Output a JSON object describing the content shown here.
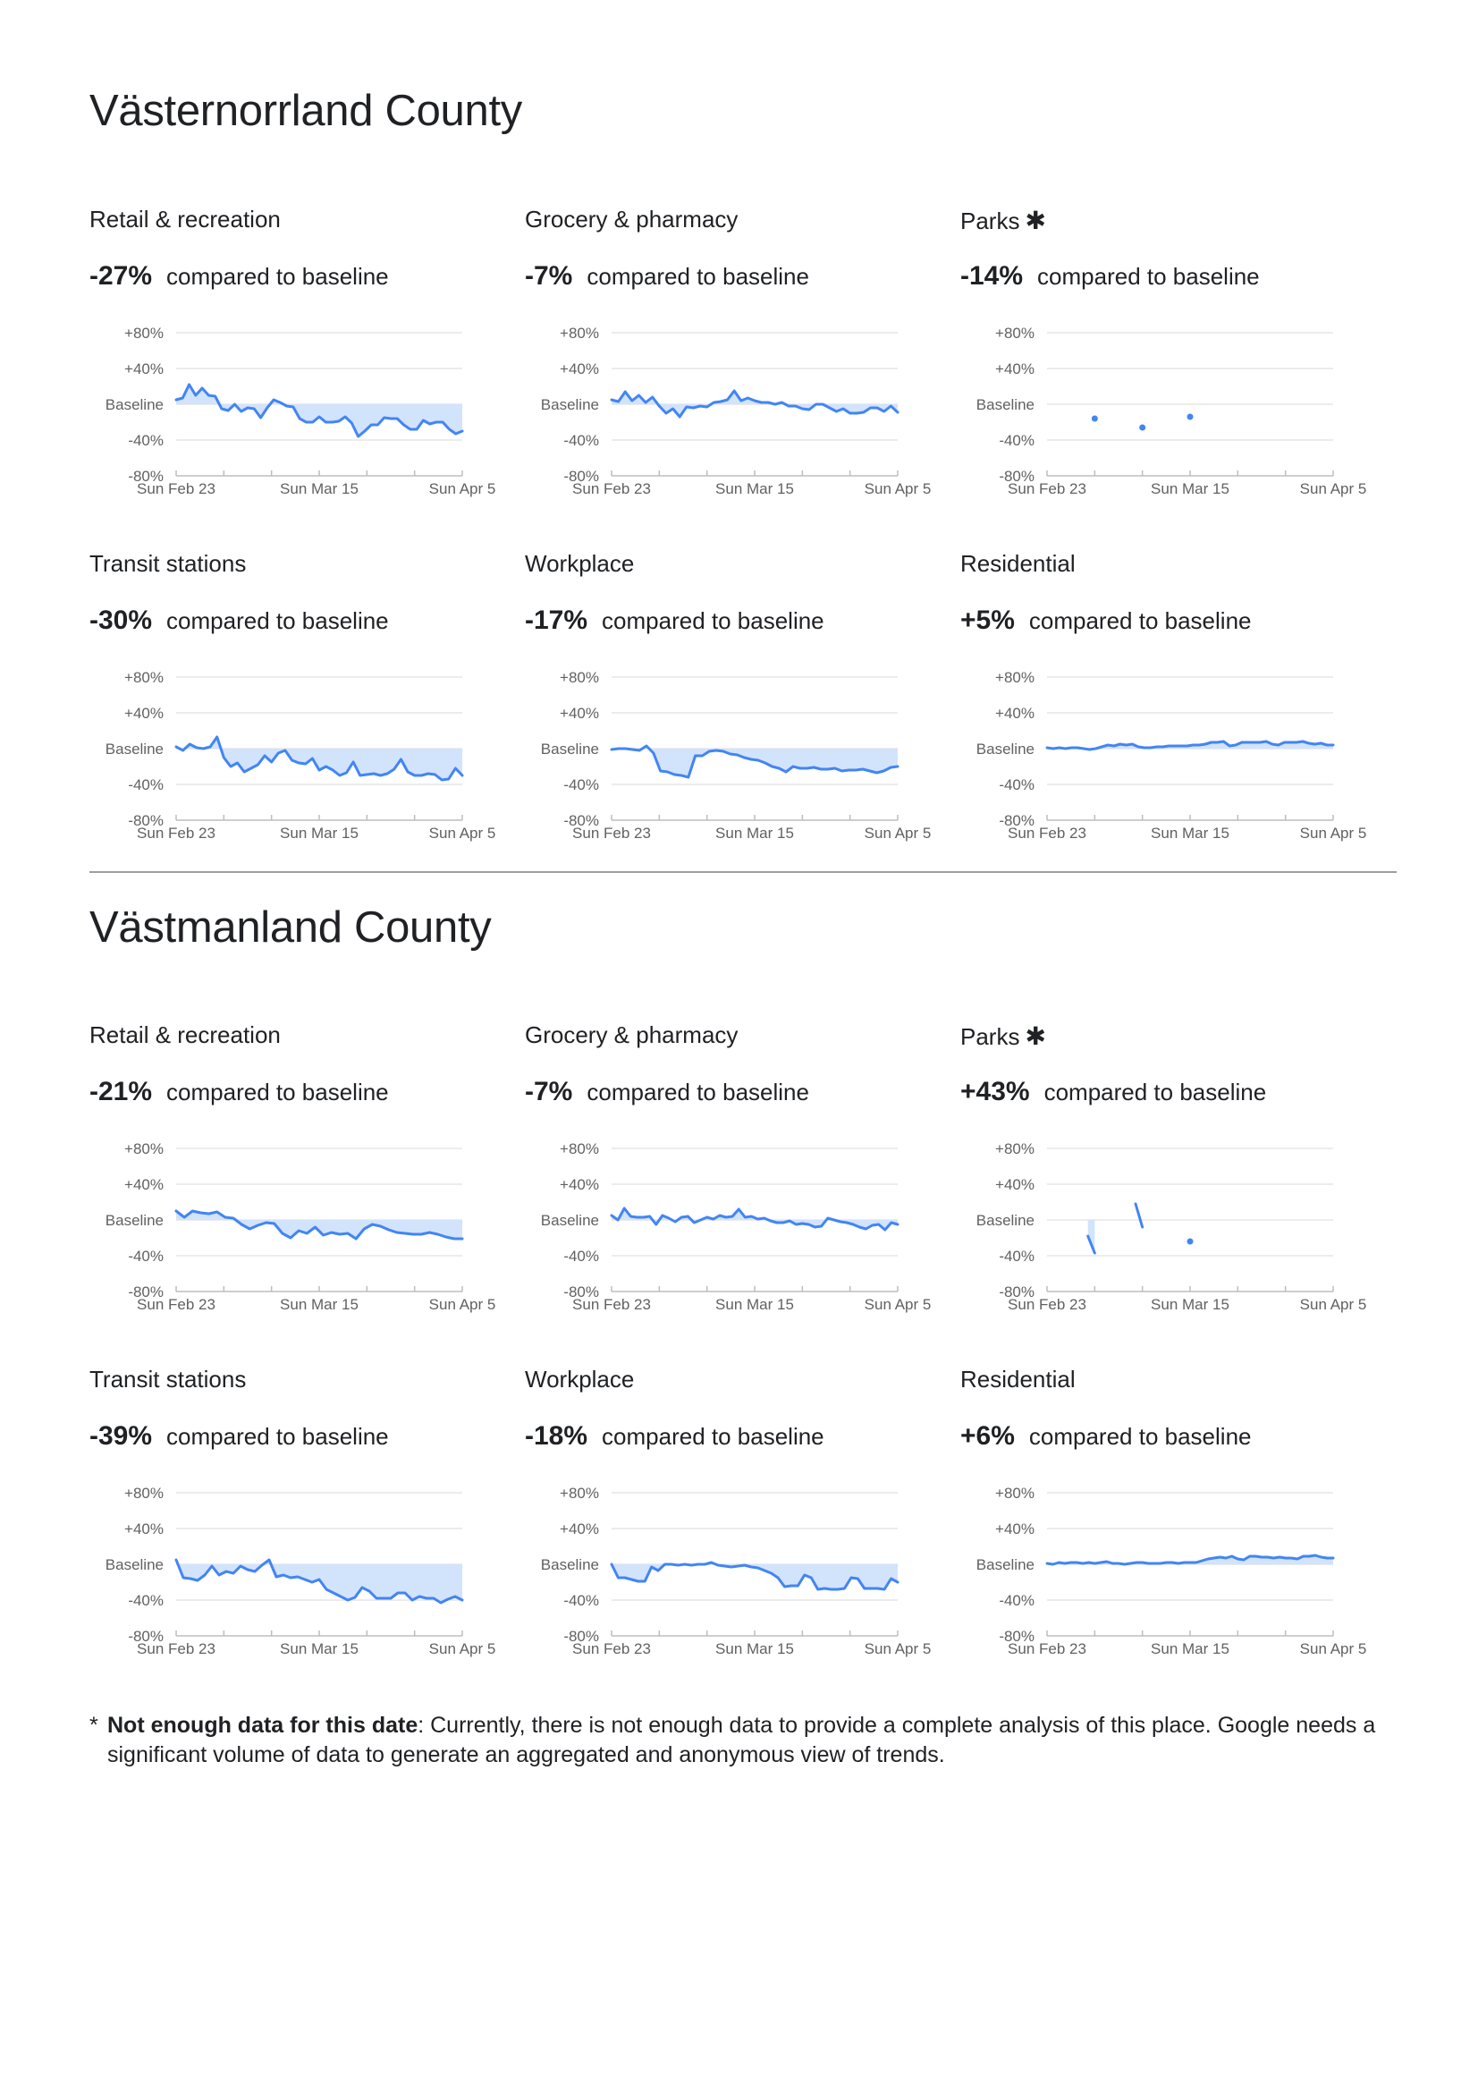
{
  "counties": [
    {
      "name": "Västernorrland County",
      "panels": [
        {
          "category": "Retail & recreation",
          "star": false,
          "change": "-27%",
          "compare_text": "compared to baseline",
          "chart_type": "line",
          "values": [
            5,
            7,
            22,
            10,
            18,
            10,
            9,
            -5,
            -7,
            0,
            -8,
            -4,
            -5,
            -15,
            -4,
            5,
            2,
            -2,
            -3,
            -16,
            -20,
            -20,
            -14,
            -20,
            -20,
            -19,
            -14,
            -21,
            -36,
            -30,
            -23,
            -23,
            -15,
            -16,
            -16,
            -23,
            -28,
            -28,
            -18,
            -22,
            -20,
            -20,
            -28,
            -33,
            -30
          ]
        },
        {
          "category": "Grocery & pharmacy",
          "star": false,
          "change": "-7%",
          "compare_text": "compared to baseline",
          "chart_type": "line",
          "values": [
            5,
            3,
            14,
            4,
            10,
            2,
            8,
            -2,
            -10,
            -5,
            -14,
            -3,
            -4,
            -2,
            -3,
            2,
            3,
            5,
            15,
            4,
            7,
            4,
            2,
            2,
            0,
            2,
            -2,
            -2,
            -5,
            -6,
            0,
            0,
            -4,
            -8,
            -5,
            -10,
            -10,
            -9,
            -4,
            -4,
            -8,
            -2,
            -9
          ]
        },
        {
          "category": "Parks",
          "star": true,
          "change": "-14%",
          "compare_text": "compared to baseline",
          "chart_type": "points",
          "points": [
            [
              7,
              -16
            ],
            [
              14,
              -26
            ],
            [
              21,
              -14
            ]
          ]
        },
        {
          "category": "Transit stations",
          "star": false,
          "change": "-30%",
          "compare_text": "compared to baseline",
          "chart_type": "line",
          "values": [
            2,
            -2,
            5,
            1,
            0,
            2,
            13,
            -10,
            -20,
            -16,
            -26,
            -22,
            -18,
            -8,
            -15,
            -5,
            -2,
            -13,
            -16,
            -17,
            -11,
            -24,
            -20,
            -24,
            -30,
            -27,
            -15,
            -30,
            -29,
            -28,
            -30,
            -28,
            -23,
            -12,
            -26,
            -30,
            -30,
            -28,
            -29,
            -35,
            -34,
            -22,
            -30
          ]
        },
        {
          "category": "Workplace",
          "star": false,
          "change": "-17%",
          "compare_text": "compared to baseline",
          "chart_type": "line",
          "values": [
            -1,
            0,
            0,
            -1,
            -2,
            3,
            -5,
            -25,
            -26,
            -29,
            -30,
            -32,
            -8,
            -8,
            -3,
            -2,
            -3,
            -6,
            -7,
            -10,
            -12,
            -13,
            -16,
            -20,
            -22,
            -26,
            -20,
            -22,
            -22,
            -21,
            -23,
            -23,
            -22,
            -25,
            -24,
            -24,
            -23,
            -25,
            -27,
            -25,
            -21,
            -20
          ]
        },
        {
          "category": "Residential",
          "star": false,
          "change": "+5%",
          "compare_text": "compared to baseline",
          "chart_type": "line",
          "values": [
            1,
            0,
            1,
            0,
            1,
            1,
            0,
            -1,
            0,
            2,
            4,
            3,
            5,
            4,
            5,
            2,
            1,
            1,
            2,
            2,
            3,
            3,
            3,
            3,
            4,
            4,
            5,
            7,
            7,
            8,
            3,
            4,
            7,
            7,
            7,
            7,
            8,
            5,
            4,
            7,
            7,
            7,
            8,
            6,
            5,
            6,
            4,
            4
          ]
        }
      ]
    },
    {
      "name": "Västmanland County",
      "panels": [
        {
          "category": "Retail & recreation",
          "star": false,
          "change": "-21%",
          "compare_text": "compared to baseline",
          "chart_type": "line",
          "values": [
            10,
            3,
            10,
            8,
            7,
            9,
            3,
            2,
            -5,
            -10,
            -6,
            -3,
            -4,
            -15,
            -20,
            -12,
            -15,
            -8,
            -17,
            -14,
            -16,
            -15,
            -21,
            -10,
            -5,
            -7,
            -11,
            -14,
            -15,
            -16,
            -16,
            -14,
            -16,
            -19,
            -21,
            -21
          ]
        },
        {
          "category": "Grocery & pharmacy",
          "star": false,
          "change": "-7%",
          "compare_text": "compared to baseline",
          "chart_type": "line",
          "values": [
            5,
            0,
            13,
            4,
            3,
            3,
            4,
            -5,
            5,
            2,
            -2,
            3,
            4,
            -3,
            0,
            3,
            1,
            5,
            3,
            4,
            12,
            3,
            4,
            1,
            2,
            -1,
            -3,
            -3,
            -1,
            -5,
            -4,
            -5,
            -8,
            -7,
            2,
            0,
            -2,
            -3,
            -5,
            -8,
            -10,
            -6,
            -5,
            -11,
            -3,
            -5
          ]
        },
        {
          "category": "Parks",
          "star": true,
          "change": "+43%",
          "compare_text": "compared to baseline",
          "chart_type": "points",
          "segments": [
            [
              [
                6,
                -18
              ],
              [
                7,
                -37
              ]
            ],
            [
              [
                13,
                18
              ],
              [
                14,
                -8
              ]
            ]
          ],
          "points": [
            [
              21,
              -24
            ]
          ],
          "fill_under": [
            [
              6,
              -18
            ],
            [
              7,
              -37
            ]
          ]
        },
        {
          "category": "Transit stations",
          "star": false,
          "change": "-39%",
          "compare_text": "compared to baseline",
          "chart_type": "line",
          "values": [
            5,
            -15,
            -16,
            -18,
            -12,
            -2,
            -12,
            -8,
            -10,
            -2,
            -6,
            -8,
            -1,
            5,
            -14,
            -12,
            -15,
            -14,
            -17,
            -20,
            -17,
            -28,
            -32,
            -36,
            -40,
            -37,
            -26,
            -30,
            -38,
            -38,
            -38,
            -32,
            -32,
            -40,
            -36,
            -38,
            -38,
            -43,
            -39,
            -36,
            -40
          ]
        },
        {
          "category": "Workplace",
          "star": false,
          "change": "-18%",
          "compare_text": "compared to baseline",
          "chart_type": "line",
          "values": [
            0,
            -15,
            -15,
            -17,
            -19,
            -19,
            -3,
            -7,
            0,
            0,
            -1,
            0,
            -1,
            0,
            0,
            2,
            -1,
            -2,
            -3,
            -2,
            -1,
            -3,
            -4,
            -7,
            -10,
            -15,
            -25,
            -24,
            -24,
            -12,
            -15,
            -28,
            -27,
            -28,
            -28,
            -27,
            -15,
            -16,
            -27,
            -27,
            -27,
            -28,
            -16,
            -20
          ]
        },
        {
          "category": "Residential",
          "star": false,
          "change": "+6%",
          "compare_text": "compared to baseline",
          "chart_type": "line",
          "values": [
            1,
            0,
            2,
            1,
            2,
            2,
            1,
            2,
            1,
            2,
            3,
            1,
            1,
            0,
            1,
            2,
            2,
            1,
            1,
            1,
            2,
            2,
            1,
            2,
            2,
            2,
            4,
            6,
            7,
            8,
            7,
            9,
            6,
            5,
            9,
            9,
            8,
            8,
            7,
            8,
            7,
            7,
            6,
            9,
            9,
            10,
            8,
            7,
            7
          ]
        }
      ]
    }
  ],
  "axis": {
    "y_ticks": [
      "+80%",
      "+40%",
      "Baseline",
      "-40%",
      "-80%"
    ],
    "y_values": [
      80,
      40,
      0,
      -40,
      -80
    ],
    "x_labels": [
      "Sun Feb 23",
      "Sun Mar 15",
      "Sun Apr 5"
    ],
    "x_label_days": [
      0,
      21,
      42
    ],
    "x_tick_days": [
      0,
      7,
      14,
      21,
      28,
      35,
      42
    ],
    "x_domain": [
      0,
      42
    ],
    "y_domain": [
      -80,
      80
    ]
  },
  "colors": {
    "line": "#4285f4",
    "fill": "#d2e3fc",
    "grid": "#e6e6e6",
    "text": "#202124"
  },
  "footnote": {
    "marker": "*",
    "bold": "Not enough data for this date",
    "text": ": Currently, there is not enough data to provide a complete analysis of this place. Google needs a significant volume of data to generate an aggregated and anonymous view of trends."
  }
}
